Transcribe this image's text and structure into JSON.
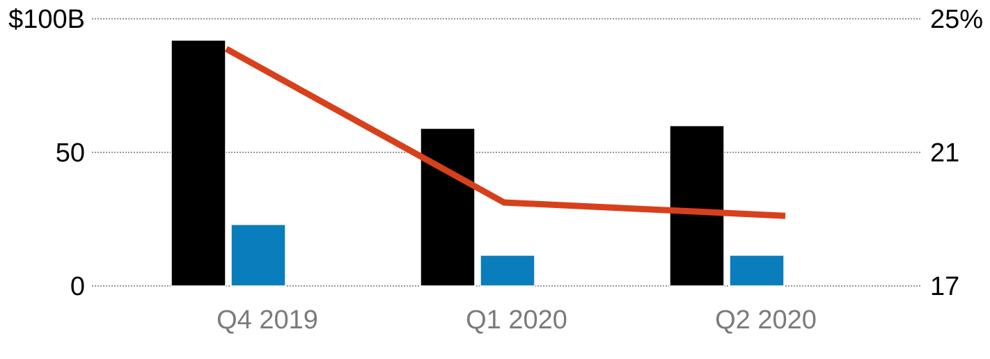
{
  "chart_data": {
    "type": "bar+line",
    "categories": [
      "Q4 2019",
      "Q1 2020",
      "Q2 2020"
    ],
    "series": [
      {
        "type": "bar",
        "axis": "left",
        "color": "#000000",
        "values": [
          92,
          59,
          60
        ]
      },
      {
        "type": "bar",
        "axis": "left",
        "color": "#0a7dbd",
        "values": [
          23,
          11.5,
          11.5
        ]
      },
      {
        "type": "line",
        "axis": "right",
        "color": "#d8401c",
        "values": [
          24.1,
          19.5,
          19.1
        ]
      }
    ],
    "y_left": {
      "min": 0,
      "max": 100,
      "ticks": [
        0,
        50,
        100
      ],
      "tick_labels": [
        "0",
        "50",
        "$100B"
      ]
    },
    "y_right": {
      "min": 17,
      "max": 25,
      "ticks": [
        17,
        21,
        25
      ],
      "tick_labels": [
        "17",
        "21",
        "25%"
      ]
    },
    "grid": true,
    "legend": "none"
  }
}
